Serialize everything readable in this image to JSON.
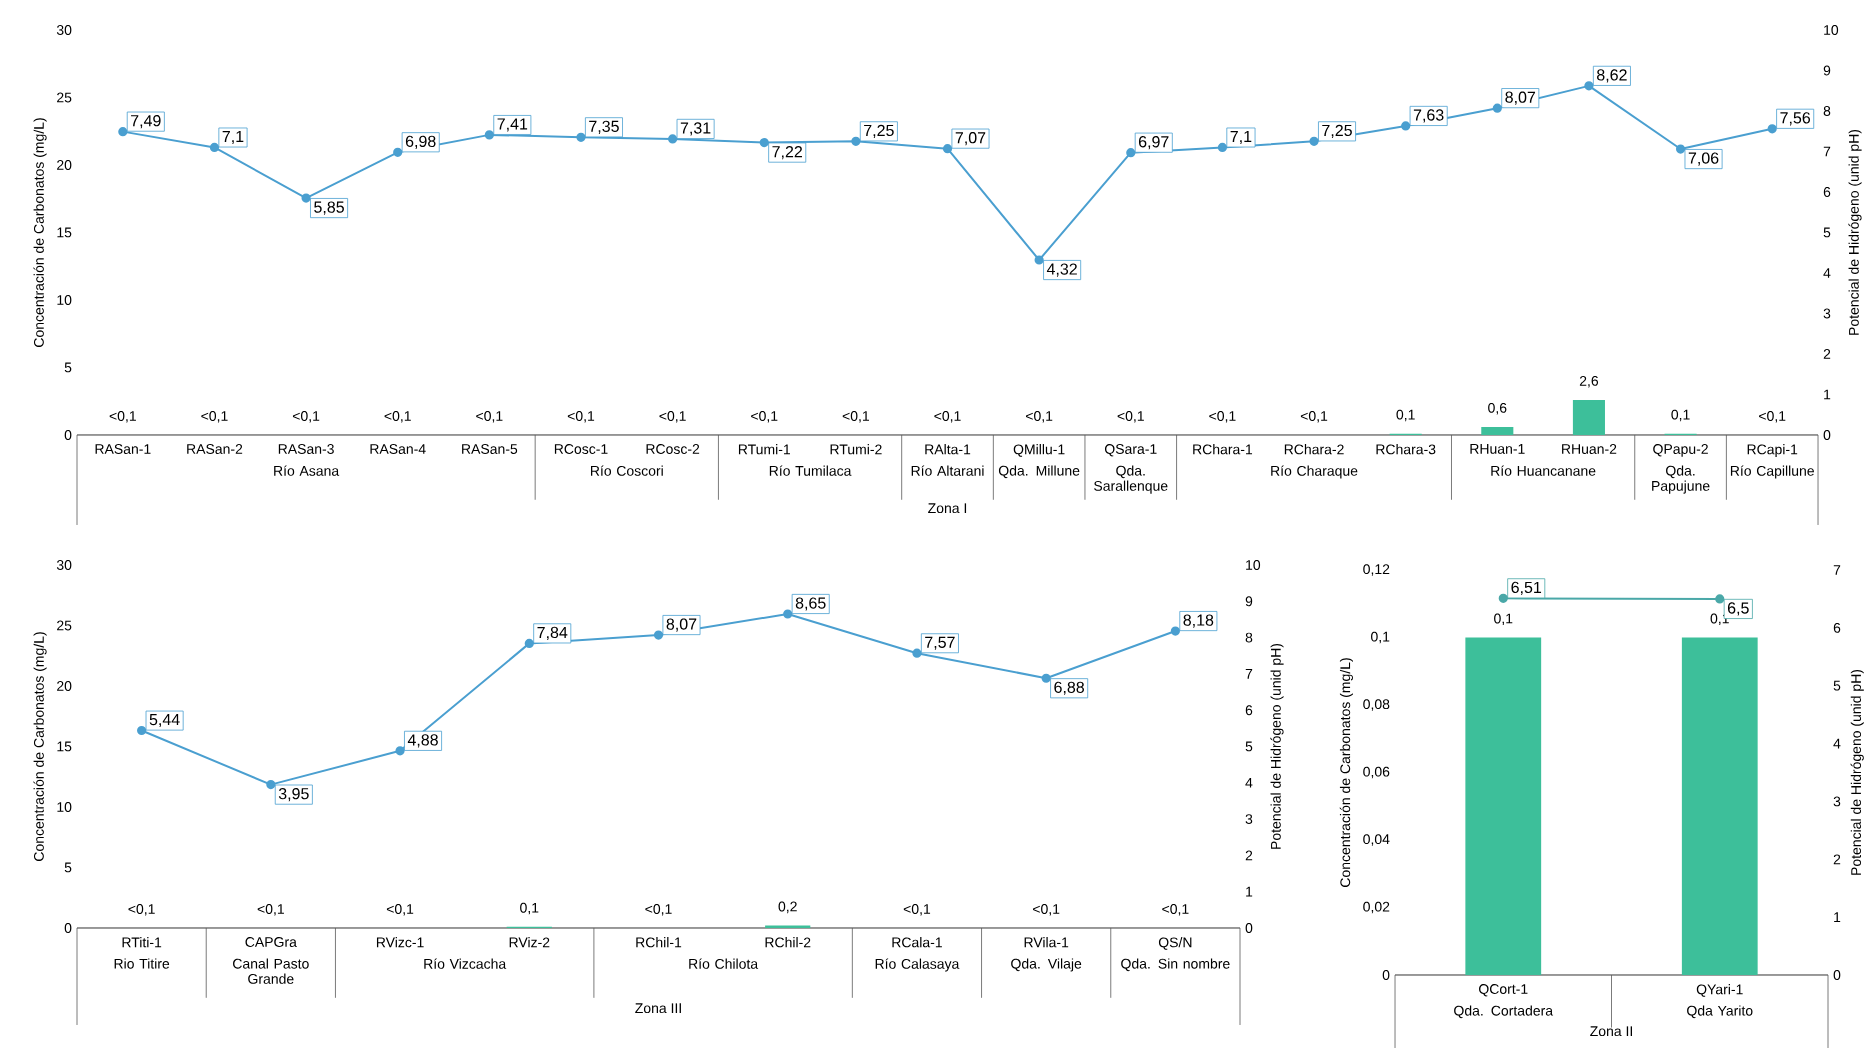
{
  "chart_data": [
    {
      "type": "bar",
      "ylabel": "Concentración de Carbonatos (mg/L)",
      "y2label": "Potencial de Hidrógeno (unid pH)",
      "categories": [
        "RASan-1",
        "RASan-2",
        "RASan-3",
        "RASan-4",
        "RASan-5",
        "RCosc-1",
        "RCosc-2",
        "RTumi-1",
        "RTumi-2",
        "RAlta-1",
        "QMillu-1",
        "QSara-1",
        "RChara-1",
        "RChara-2",
        "RChara-3",
        "RHuan-1",
        "RHuan-2",
        "QPapu-2",
        "RCapi-1"
      ],
      "series": [
        {
          "color": "#3dbf9a",
          "values": [
            null,
            null,
            null,
            null,
            null,
            null,
            null,
            null,
            null,
            null,
            null,
            null,
            null,
            null,
            0.1,
            0.6,
            2.6,
            0.1,
            null
          ],
          "value_labels": [
            "<0,1",
            "<0,1",
            "<0,1",
            "<0,1",
            "<0,1",
            "<0,1",
            "<0,1",
            "<0,1",
            "<0,1",
            "<0,1",
            "<0,1",
            "<0,1",
            "<0,1",
            "<0,1",
            "0,1",
            "0,6",
            "2,6",
            "0,1",
            "<0,1"
          ]
        },
        {
          "type": "line",
          "axis": "y2",
          "color": "#4a9fd0",
          "values": [
            7.49,
            7.1,
            5.85,
            6.98,
            7.41,
            7.35,
            7.31,
            7.22,
            7.25,
            7.07,
            4.32,
            6.97,
            7.1,
            7.25,
            7.63,
            8.07,
            8.62,
            7.06,
            7.56
          ],
          "value_labels": [
            "7,49",
            "7,1",
            "5,85",
            "6,98",
            "7,41",
            "7,35",
            "7,31",
            "7,22",
            "7,25",
            "7,07",
            "4,32",
            "6,97",
            "7,1",
            "7,25",
            "7,63",
            "8,07",
            "8,62",
            "7,06",
            "7,56"
          ]
        }
      ],
      "ylim": [
        0,
        30
      ],
      "yticks": [
        0,
        5,
        10,
        15,
        20,
        25,
        30
      ],
      "y2lim": [
        0,
        10
      ],
      "y2ticks": [
        0,
        1,
        2,
        3,
        4,
        5,
        6,
        7,
        8,
        9,
        10
      ],
      "marker": "circle",
      "annotations": [
        "Río Asana",
        "Río Coscori",
        "Río Tumilaca",
        "Río Altarani",
        "Qda. Millune",
        "Qda. Sarallenque",
        "Río Charaque",
        "Río Huancanane",
        "Qda. Papujune",
        "Río Capillune",
        "Zona I"
      ]
    },
    {
      "type": "bar",
      "ylabel": "Concentración de Carbonatos (mg/L)",
      "y2label": "Potencial de Hidrógeno (unid pH)",
      "categories": [
        "RTiti-1",
        "CAPGra",
        "RVizc-1",
        "RViz-2",
        "RChil-1",
        "RChil-2",
        "RCala-1",
        "RVila-1",
        "QS/N"
      ],
      "series": [
        {
          "color": "#3dbf9a",
          "values": [
            null,
            null,
            null,
            0.1,
            null,
            0.2,
            null,
            null,
            null
          ],
          "value_labels": [
            "<0,1",
            "<0,1",
            "<0,1",
            "0,1",
            "<0,1",
            "0,2",
            "<0,1",
            "<0,1",
            "<0,1"
          ]
        },
        {
          "type": "line",
          "axis": "y2",
          "color": "#4a9fd0",
          "values": [
            5.44,
            3.95,
            4.88,
            7.84,
            8.07,
            8.65,
            7.57,
            6.88,
            8.18
          ],
          "value_labels": [
            "5,44",
            "3,95",
            "4,88",
            "7,84",
            "8,07",
            "8,65",
            "7,57",
            "6,88",
            "8,18"
          ]
        }
      ],
      "ylim": [
        0,
        30
      ],
      "yticks": [
        0,
        5,
        10,
        15,
        20,
        25,
        30
      ],
      "y2lim": [
        0,
        10
      ],
      "y2ticks": [
        0,
        1,
        2,
        3,
        4,
        5,
        6,
        7,
        8,
        9,
        10
      ],
      "marker": "circle",
      "annotations": [
        "Rio Titire",
        "Canal Pasto Grande",
        "Río Vizcacha",
        "Río Chilota",
        "Río Calasaya",
        "Qda. Vilaje",
        "Qda. Sin nombre",
        "Zona III"
      ]
    },
    {
      "type": "bar",
      "ylabel": "Concentración de Carbonatos (mg/L)",
      "y2label": "Potencial de Hidrógeno (unid pH)",
      "categories": [
        "QCort-1",
        "QYari-1"
      ],
      "series": [
        {
          "color": "#3dbf9a",
          "values": [
            0.1,
            0.1
          ],
          "value_labels": [
            "0,1",
            "0,1"
          ]
        },
        {
          "type": "line",
          "axis": "y2",
          "color": "#4aa8a8",
          "values": [
            6.51,
            6.5
          ],
          "value_labels": [
            "6,51",
            "6,5"
          ]
        }
      ],
      "ylim": [
        0,
        0.12
      ],
      "yticks": [
        0,
        {
          "value": 0.02,
          "label": "0,02"
        },
        {
          "value": 0.04,
          "label": "0,04"
        },
        {
          "value": 0.06,
          "label": "0,06"
        },
        {
          "value": 0.08,
          "label": "0,08"
        },
        {
          "value": 0.1,
          "label": "0,1"
        },
        {
          "value": 0.12,
          "label": "0,12"
        }
      ],
      "y2lim": [
        0,
        7
      ],
      "y2ticks": [
        0,
        1,
        2,
        3,
        4,
        5,
        6,
        7
      ],
      "marker": "circle",
      "annotations": [
        "Qda. Cortadera",
        "Qda Yarito",
        "Zona II"
      ]
    }
  ]
}
